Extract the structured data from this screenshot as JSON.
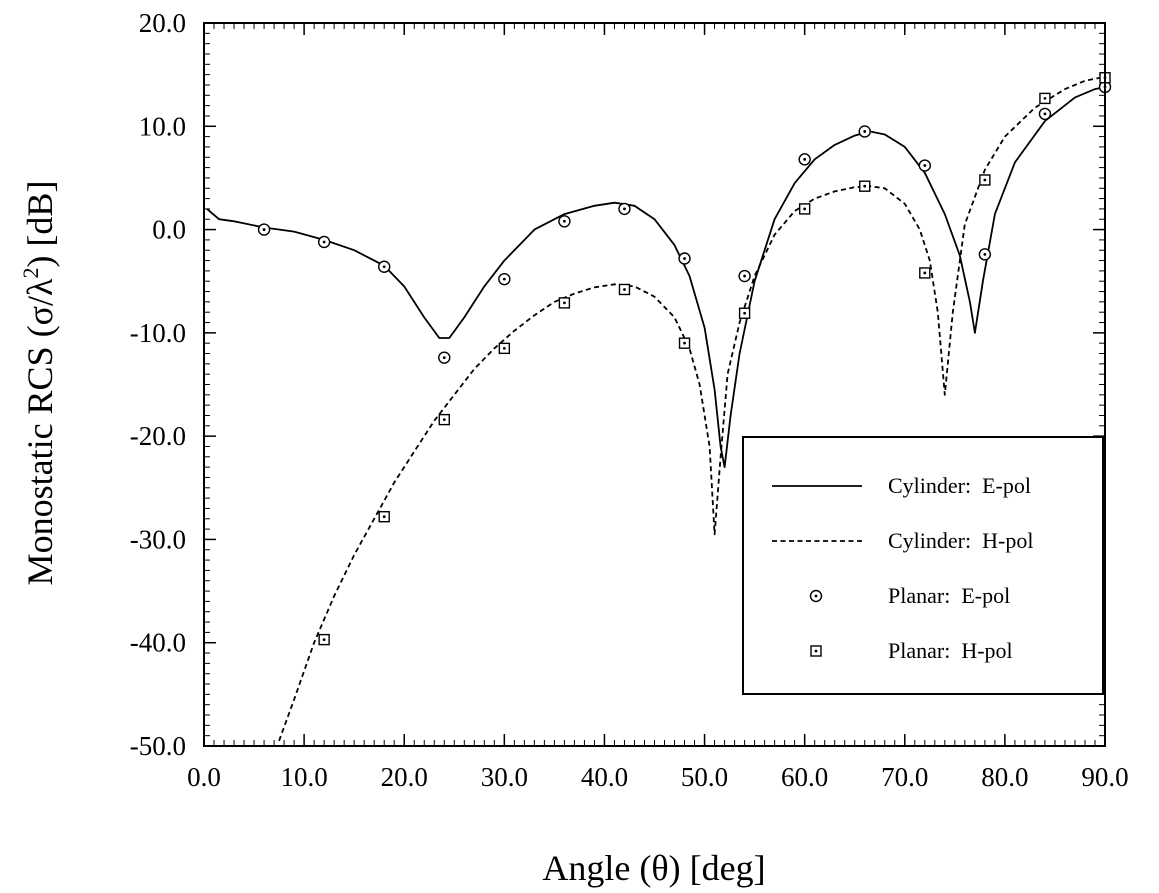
{
  "chart_data": {
    "type": "line",
    "xlabel": "Angle (θ) [deg]",
    "ylabel": {
      "prefix": "Monostatic RCS (σ/λ",
      "superscript": "2",
      "suffix": ") [dB]"
    },
    "xlim": [
      0,
      90
    ],
    "ylim": [
      -50,
      20
    ],
    "x_ticks": [
      0,
      10,
      20,
      30,
      40,
      50,
      60,
      70,
      80,
      90
    ],
    "x_tick_labels": [
      "0.0",
      "10.0",
      "20.0",
      "30.0",
      "40.0",
      "50.0",
      "60.0",
      "70.0",
      "80.0",
      "90.0"
    ],
    "y_ticks": [
      20,
      10,
      0,
      -10,
      -20,
      -30,
      -40,
      -50
    ],
    "y_tick_labels": [
      "20.0",
      "10.0",
      "0.0",
      "-10.0",
      "-20.0",
      "-30.0",
      "-40.0",
      "-50.0"
    ],
    "legend_position": "bottom-right",
    "grid": false,
    "series": [
      {
        "name": "Cylinder:  E-pol",
        "style": "solid",
        "marker": "none",
        "x": [
          0.3,
          1.5,
          3,
          6,
          9,
          12,
          15,
          18,
          20,
          22,
          23.5,
          24.5,
          26,
          28,
          30,
          33,
          36,
          39,
          41,
          43,
          45,
          47,
          48.5,
          50,
          51,
          51.6,
          52,
          52.6,
          53.5,
          55,
          57,
          59,
          61,
          63,
          65,
          66.5,
          68,
          70,
          72,
          74,
          75.5,
          76.5,
          77,
          77.8,
          79,
          81,
          84,
          87,
          89,
          90
        ],
        "y": [
          2.0,
          1.0,
          0.8,
          0.2,
          -0.2,
          -1.0,
          -2.0,
          -3.5,
          -5.5,
          -8.5,
          -10.5,
          -10.5,
          -8.5,
          -5.5,
          -3.0,
          0.0,
          1.5,
          2.3,
          2.6,
          2.3,
          1.0,
          -1.5,
          -4.5,
          -9.5,
          -15.5,
          -21.0,
          -23.0,
          -18.0,
          -12.0,
          -5.0,
          1.0,
          4.5,
          6.8,
          8.2,
          9.1,
          9.5,
          9.2,
          8.0,
          5.5,
          1.5,
          -2.5,
          -7.0,
          -10.0,
          -5.0,
          1.5,
          6.5,
          10.5,
          12.8,
          13.6,
          13.8
        ]
      },
      {
        "name": "Cylinder:  H-pol",
        "style": "dashed",
        "marker": "none",
        "x": [
          7.5,
          9,
          11,
          13,
          15,
          17,
          19,
          21,
          23,
          25,
          27,
          29,
          31,
          33,
          35,
          37,
          39,
          41,
          43,
          45,
          47,
          48.5,
          49.5,
          50.5,
          51,
          51.6,
          52.3,
          53.5,
          55,
          57,
          59,
          61,
          63,
          65,
          66.5,
          68,
          70,
          71.5,
          72.5,
          73.3,
          74,
          74.8,
          76,
          78,
          80,
          83,
          86,
          88,
          90
        ],
        "y": [
          -49.5,
          -45.5,
          -40.0,
          -35.5,
          -31.5,
          -28.0,
          -24.5,
          -21.5,
          -18.5,
          -16.0,
          -13.5,
          -11.5,
          -9.8,
          -8.3,
          -7.0,
          -6.2,
          -5.6,
          -5.3,
          -5.5,
          -6.5,
          -8.5,
          -11.5,
          -15.0,
          -21.0,
          -29.5,
          -22.0,
          -14.0,
          -9.0,
          -4.5,
          -0.5,
          1.8,
          3.0,
          3.7,
          4.1,
          4.2,
          4.0,
          2.5,
          0.0,
          -3.0,
          -8.0,
          -16.0,
          -8.0,
          0.5,
          5.8,
          9.0,
          11.8,
          13.6,
          14.4,
          14.8
        ]
      },
      {
        "name": "Planar:  E-pol",
        "style": "none",
        "marker": "circle-dot",
        "x": [
          6,
          12,
          18,
          24,
          30,
          36,
          42,
          48,
          54,
          60,
          66,
          72,
          78,
          84,
          90
        ],
        "y": [
          0.0,
          -1.2,
          -3.6,
          -12.4,
          -4.8,
          0.8,
          2.0,
          -2.8,
          -4.5,
          6.8,
          9.5,
          6.2,
          -2.4,
          11.2,
          13.8
        ]
      },
      {
        "name": "Planar:  H-pol",
        "style": "none",
        "marker": "square-dot",
        "x": [
          12,
          18,
          24,
          30,
          36,
          42,
          48,
          54,
          60,
          66,
          72,
          78,
          84,
          90
        ],
        "y": [
          -39.7,
          -27.8,
          -18.4,
          -11.5,
          -7.1,
          -5.8,
          -11.0,
          -8.1,
          2.0,
          4.2,
          -4.2,
          4.8,
          12.7,
          14.7
        ]
      }
    ]
  }
}
